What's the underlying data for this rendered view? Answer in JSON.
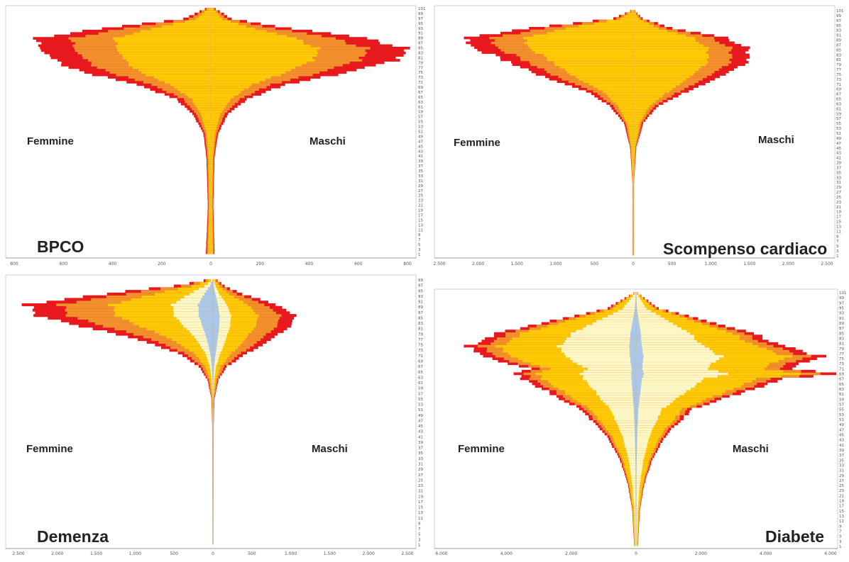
{
  "colors": {
    "level1": "#e8191e",
    "level2": "#f2902b",
    "level3": "#fdc905",
    "level4": "#fdf6c6",
    "level5": "#a9c7ea",
    "axis": "#999999"
  },
  "chart_data": [
    {
      "type": "bar",
      "orientation": "horizontal-pyramid",
      "title": "BPCO",
      "left_label": "Femmine",
      "right_label": "Maschi",
      "x_ticks": [
        "800",
        "600",
        "400",
        "200",
        "0",
        "200",
        "400",
        "600",
        "800"
      ],
      "xlim": [
        -800,
        800
      ],
      "age_ticks": [
        "101",
        "99",
        "97",
        "95",
        "93",
        "91",
        "89",
        "87",
        "85",
        "83",
        "81",
        "79",
        "77",
        "75",
        "73",
        "71",
        "69",
        "67",
        "65",
        "63",
        "61",
        "59",
        "57",
        "55",
        "53",
        "51",
        "49",
        "47",
        "45",
        "43",
        "41",
        "39",
        "37",
        "35",
        "33",
        "31",
        "29",
        "27",
        "25",
        "23",
        "21",
        "19",
        "17",
        "15",
        "13",
        "11",
        "9",
        "7",
        "5",
        "3",
        "1"
      ],
      "profile": {
        "ages": [
          1,
          20,
          40,
          50,
          58,
          64,
          70,
          75,
          80,
          85,
          89,
          93,
          97,
          101
        ],
        "female": [
          20,
          12,
          18,
          30,
          75,
          140,
          300,
          520,
          640,
          690,
          720,
          440,
          110,
          25
        ],
        "male": [
          15,
          10,
          15,
          30,
          70,
          150,
          300,
          560,
          770,
          790,
          620,
          330,
          85,
          20
        ]
      },
      "layers": [
        1,
        0.8,
        0.55,
        0,
        0
      ]
    },
    {
      "type": "bar",
      "orientation": "horizontal-pyramid",
      "title": "Scompenso cardiaco",
      "left_label": "Femmine",
      "right_label": "Maschi",
      "x_ticks": [
        "2.500",
        "2.000",
        "1.500",
        "1.000",
        "500",
        "0",
        "500",
        "1.000",
        "1.500",
        "2.000",
        "2.500"
      ],
      "xlim": [
        -2500,
        2500
      ],
      "age_ticks": [
        "101",
        "99",
        "97",
        "95",
        "93",
        "91",
        "89",
        "87",
        "85",
        "83",
        "81",
        "79",
        "77",
        "75",
        "73",
        "71",
        "69",
        "67",
        "65",
        "63",
        "61",
        "59",
        "57",
        "55",
        "53",
        "51",
        "49",
        "47",
        "45",
        "43",
        "41",
        "39",
        "37",
        "35",
        "33",
        "31",
        "29",
        "27",
        "25",
        "23",
        "21",
        "19",
        "17",
        "15",
        "13",
        "11",
        "9",
        "7",
        "5",
        "3",
        "1"
      ],
      "profile": {
        "ages": [
          1,
          30,
          45,
          55,
          62,
          68,
          74,
          80,
          86,
          90,
          94,
          98,
          101
        ],
        "female": [
          10,
          10,
          40,
          120,
          300,
          600,
          1150,
          1600,
          2050,
          2150,
          1350,
          250,
          40
        ],
        "male": [
          10,
          10,
          40,
          130,
          320,
          700,
          1150,
          1500,
          1470,
          1200,
          500,
          120,
          25
        ]
      },
      "layers": [
        1,
        0.85,
        0.65,
        0,
        0
      ]
    },
    {
      "type": "bar",
      "orientation": "horizontal-pyramid",
      "title": "Demenza",
      "left_label": "Femmine",
      "right_label": "Maschi",
      "x_ticks": [
        "2.500",
        "2.000",
        "1.500",
        "1.000",
        "500",
        "0",
        "500",
        "1.000",
        "1.500",
        "2.000",
        "2.500"
      ],
      "xlim": [
        -2500,
        2500
      ],
      "age_ticks": [
        "99",
        "97",
        "95",
        "93",
        "91",
        "89",
        "87",
        "85",
        "83",
        "81",
        "79",
        "77",
        "75",
        "73",
        "71",
        "69",
        "67",
        "65",
        "63",
        "61",
        "59",
        "57",
        "55",
        "53",
        "51",
        "49",
        "47",
        "45",
        "43",
        "41",
        "39",
        "37",
        "35",
        "33",
        "31",
        "29",
        "27",
        "25",
        "23",
        "21",
        "19",
        "17",
        "15",
        "13",
        "11",
        "9",
        "7",
        "5",
        "3",
        "1"
      ],
      "profile": {
        "ages": [
          1,
          45,
          55,
          62,
          67,
          72,
          77,
          82,
          86,
          90,
          94,
          97,
          99
        ],
        "female": [
          5,
          10,
          20,
          70,
          180,
          450,
          950,
          1700,
          2250,
          2400,
          1400,
          500,
          120
        ],
        "male": [
          5,
          10,
          20,
          70,
          180,
          450,
          750,
          1000,
          1050,
          820,
          380,
          150,
          60
        ]
      },
      "layers": [
        1,
        0.82,
        0.55,
        0.22,
        0.08
      ]
    },
    {
      "type": "bar",
      "orientation": "horizontal-pyramid",
      "title": "Diabete",
      "left_label": "Femmine",
      "right_label": "Maschi",
      "x_ticks": [
        "6.000",
        "4.000",
        "2.000",
        "0",
        "2.000",
        "4.000",
        "6.000"
      ],
      "xlim": [
        -6000,
        6000
      ],
      "age_ticks": [
        "101",
        "99",
        "97",
        "95",
        "93",
        "91",
        "89",
        "87",
        "85",
        "83",
        "81",
        "79",
        "77",
        "75",
        "73",
        "71",
        "69",
        "67",
        "65",
        "63",
        "61",
        "59",
        "57",
        "55",
        "53",
        "51",
        "49",
        "47",
        "45",
        "43",
        "41",
        "39",
        "37",
        "35",
        "33",
        "31",
        "29",
        "27",
        "25",
        "23",
        "21",
        "19",
        "17",
        "15",
        "13",
        "11",
        "9",
        "7",
        "5",
        "3",
        "1"
      ],
      "profile": {
        "ages": [
          1,
          15,
          25,
          35,
          45,
          55,
          62,
          67,
          69,
          71,
          76,
          80,
          85,
          90,
          95,
          101
        ],
        "female": [
          60,
          120,
          250,
          500,
          950,
          1750,
          2750,
          3500,
          3700,
          3300,
          4800,
          5200,
          4300,
          2600,
          900,
          80
        ],
        "male": [
          60,
          120,
          250,
          500,
          950,
          1750,
          3400,
          4600,
          6100,
          4700,
          5700,
          4600,
          3600,
          2200,
          700,
          60
        ]
      },
      "layers": [
        1,
        0.92,
        0.82,
        0.46,
        0.04
      ]
    }
  ]
}
